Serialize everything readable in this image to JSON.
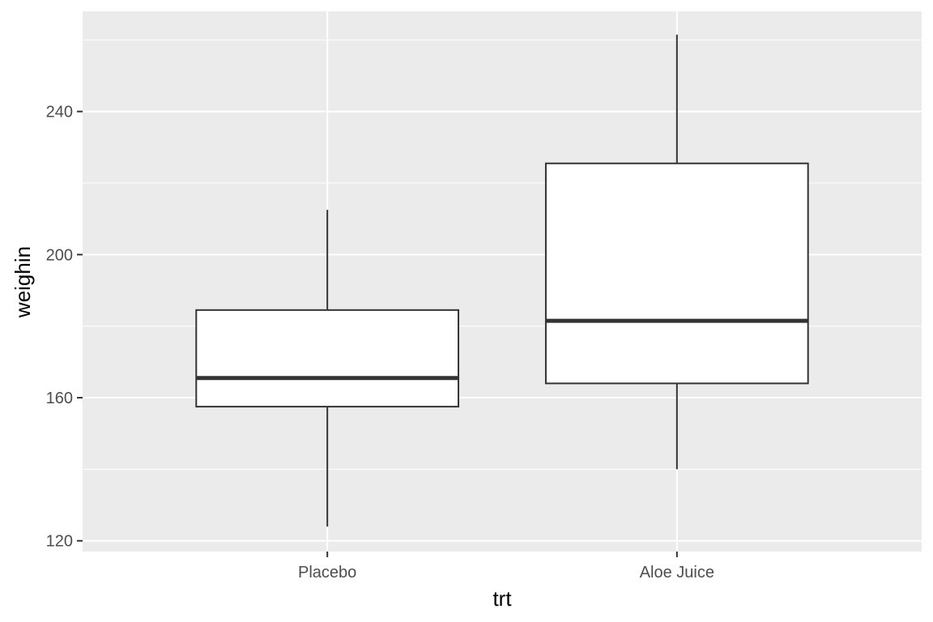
{
  "chart_data": {
    "type": "box",
    "xlabel": "trt",
    "ylabel": "weighin",
    "ylim": [
      117,
      268
    ],
    "y_major_ticks": [
      120,
      160,
      200,
      240
    ],
    "y_minor_ticks": [
      140,
      180,
      220,
      260
    ],
    "grid": true,
    "categories": [
      "Placebo",
      "Aloe Juice"
    ],
    "boxes": [
      {
        "category": "Placebo",
        "whisker_low": 124,
        "q1": 157.5,
        "median": 165.5,
        "q3": 184.5,
        "whisker_high": 212.5
      },
      {
        "category": "Aloe Juice",
        "whisker_low": 140,
        "q1": 164,
        "median": 181.5,
        "q3": 225.5,
        "whisker_high": 261.5
      }
    ],
    "colors": {
      "panel": "#ebebeb",
      "grid_major": "#ffffff",
      "box_fill": "#ffffff",
      "box_line": "#333333",
      "tick_text": "#4d4d4d"
    }
  }
}
